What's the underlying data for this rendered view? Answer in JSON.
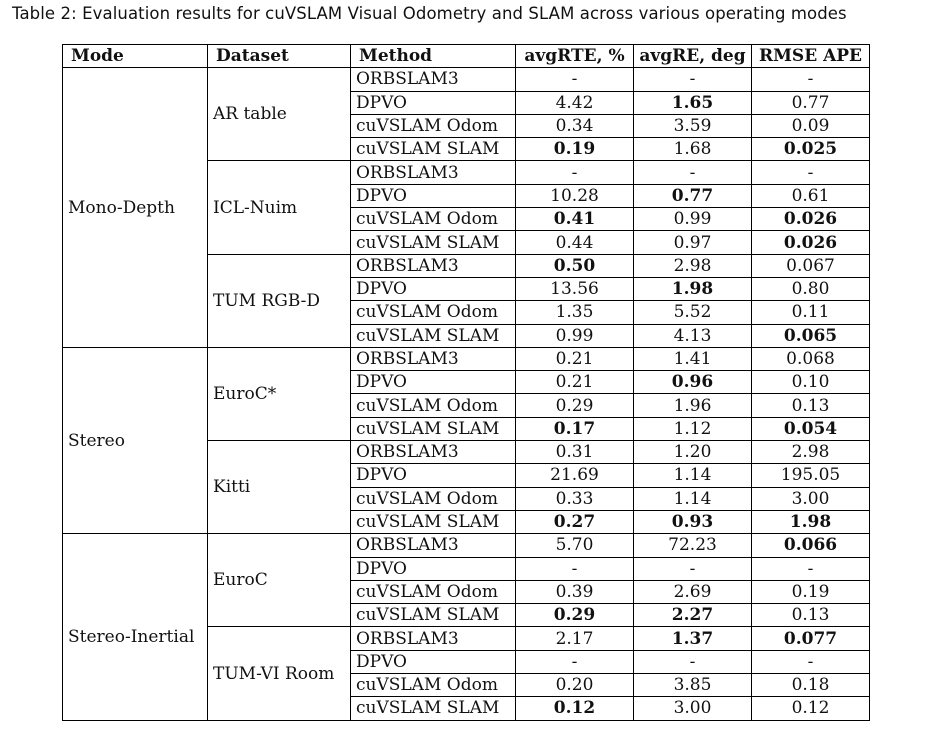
{
  "caption": "Table 2: Evaluation results for cuVSLAM Visual Odometry and SLAM across various operating modes",
  "headers": [
    "Mode",
    "Dataset",
    "Method",
    "avgRTE, %",
    "avgRE, deg",
    "RMSE APE"
  ],
  "groups": [
    {
      "mode": "Mono-Depth",
      "datasets": [
        {
          "name": "AR table",
          "rows": [
            {
              "method": "ORBSLAM3",
              "rte": "-",
              "re": "-",
              "ape": "-"
            },
            {
              "method": "DPVO",
              "rte": "4.42",
              "re": "1.65",
              "ape": "0.77",
              "bold": [
                "re"
              ]
            },
            {
              "method": "cuVSLAM Odom",
              "rte": "0.34",
              "re": "3.59",
              "ape": "0.09"
            },
            {
              "method": "cuVSLAM SLAM",
              "rte": "0.19",
              "re": "1.68",
              "ape": "0.025",
              "bold": [
                "rte",
                "ape"
              ]
            }
          ]
        },
        {
          "name": "ICL-Nuim",
          "rows": [
            {
              "method": "ORBSLAM3",
              "rte": "-",
              "re": "-",
              "ape": "-"
            },
            {
              "method": "DPVO",
              "rte": "10.28",
              "re": "0.77",
              "ape": "0.61",
              "bold": [
                "re"
              ]
            },
            {
              "method": "cuVSLAM Odom",
              "rte": "0.41",
              "re": "0.99",
              "ape": "0.026",
              "bold": [
                "rte",
                "ape"
              ]
            },
            {
              "method": "cuVSLAM SLAM",
              "rte": "0.44",
              "re": "0.97",
              "ape": "0.026",
              "bold": [
                "ape"
              ]
            }
          ]
        },
        {
          "name": "TUM RGB-D",
          "rows": [
            {
              "method": "ORBSLAM3",
              "rte": "0.50",
              "re": "2.98",
              "ape": "0.067",
              "bold": [
                "rte"
              ]
            },
            {
              "method": "DPVO",
              "rte": "13.56",
              "re": "1.98",
              "ape": "0.80",
              "bold": [
                "re"
              ]
            },
            {
              "method": "cuVSLAM Odom",
              "rte": "1.35",
              "re": "5.52",
              "ape": "0.11"
            },
            {
              "method": "cuVSLAM SLAM",
              "rte": "0.99",
              "re": "4.13",
              "ape": "0.065",
              "bold": [
                "ape"
              ]
            }
          ]
        }
      ]
    },
    {
      "mode": "Stereo",
      "datasets": [
        {
          "name": "EuroC*",
          "rows": [
            {
              "method": "ORBSLAM3",
              "rte": "0.21",
              "re": "1.41",
              "ape": "0.068"
            },
            {
              "method": "DPVO",
              "rte": "0.21",
              "re": "0.96",
              "ape": "0.10",
              "bold": [
                "re"
              ]
            },
            {
              "method": "cuVSLAM Odom",
              "rte": "0.29",
              "re": "1.96",
              "ape": "0.13"
            },
            {
              "method": "cuVSLAM SLAM",
              "rte": "0.17",
              "re": "1.12",
              "ape": "0.054",
              "bold": [
                "rte",
                "ape"
              ]
            }
          ]
        },
        {
          "name": "Kitti",
          "rows": [
            {
              "method": "ORBSLAM3",
              "rte": "0.31",
              "re": "1.20",
              "ape": "2.98"
            },
            {
              "method": "DPVO",
              "rte": "21.69",
              "re": "1.14",
              "ape": "195.05"
            },
            {
              "method": "cuVSLAM Odom",
              "rte": "0.33",
              "re": "1.14",
              "ape": "3.00"
            },
            {
              "method": "cuVSLAM SLAM",
              "rte": "0.27",
              "re": "0.93",
              "ape": "1.98",
              "bold": [
                "rte",
                "re",
                "ape"
              ]
            }
          ]
        }
      ]
    },
    {
      "mode": "Stereo-Inertial",
      "datasets": [
        {
          "name": "EuroC",
          "rows": [
            {
              "method": "ORBSLAM3",
              "rte": "5.70",
              "re": "72.23",
              "ape": "0.066",
              "bold": [
                "ape"
              ]
            },
            {
              "method": "DPVO",
              "rte": "-",
              "re": "-",
              "ape": "-"
            },
            {
              "method": "cuVSLAM Odom",
              "rte": "0.39",
              "re": "2.69",
              "ape": "0.19"
            },
            {
              "method": "cuVSLAM SLAM",
              "rte": "0.29",
              "re": "2.27",
              "ape": "0.13",
              "bold": [
                "rte",
                "re"
              ]
            }
          ]
        },
        {
          "name": "TUM-VI Room",
          "rows": [
            {
              "method": "ORBSLAM3",
              "rte": "2.17",
              "re": "1.37",
              "ape": "0.077",
              "bold": [
                "re",
                "ape"
              ]
            },
            {
              "method": "DPVO",
              "rte": "-",
              "re": "-",
              "ape": "-"
            },
            {
              "method": "cuVSLAM Odom",
              "rte": "0.20",
              "re": "3.85",
              "ape": "0.18"
            },
            {
              "method": "cuVSLAM SLAM",
              "rte": "0.12",
              "re": "3.00",
              "ape": "0.12",
              "bold": [
                "rte"
              ]
            }
          ]
        }
      ]
    }
  ]
}
